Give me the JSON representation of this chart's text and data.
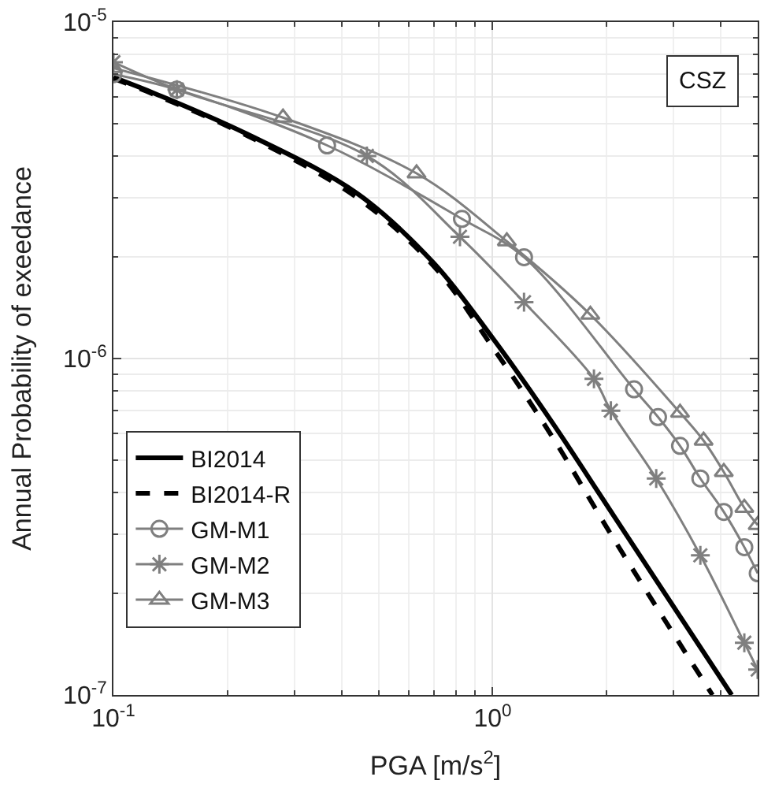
{
  "chart_data": {
    "type": "line",
    "xlabel": "PGA [m/s$^{2}$]",
    "ylabel": "Annual Probability of exeedance",
    "annotations": [
      "CSZ"
    ],
    "log": "xy",
    "grid": true,
    "legend": "bottom left",
    "xlim": [
      0.1,
      5.0
    ],
    "xticks": [
      {
        "value": 0.1,
        "label": "10$^{-1}$"
      },
      {
        "value": 1,
        "label": "10$^{0}$"
      }
    ],
    "ylim": [
      1e-07,
      1e-05
    ],
    "yticks": [
      {
        "value": 1e-07,
        "label": "10$^{-7}$"
      },
      {
        "value": 1e-06,
        "label": "10$^{-6}$"
      },
      {
        "value": 1e-05,
        "label": "10$^{-5}$"
      }
    ],
    "series": [
      {
        "name": "BI2014",
        "color": "#000000",
        "line_style": "solid",
        "marker": "none",
        "x": [
          0.1,
          0.13,
          0.225,
          0.44,
          0.7,
          1.0,
          1.43,
          2.09,
          4.27
        ],
        "values": [
          6.85e-06,
          6.1e-06,
          4.65e-06,
          3.09e-06,
          1.92e-06,
          1.15e-06,
          6.5e-07,
          3.4e-07,
          1e-07
        ]
      },
      {
        "name": "BI2014-R",
        "color": "#000000",
        "line_style": "dashed",
        "marker": "none",
        "x": [
          0.1,
          0.13,
          0.225,
          0.44,
          0.7,
          1.0,
          1.43,
          2.09,
          3.8
        ],
        "values": [
          6.8e-06,
          6.05e-06,
          4.6e-06,
          3e-06,
          1.88e-06,
          1.08e-06,
          5.9e-07,
          2.9e-07,
          1e-07
        ]
      },
      {
        "name": "GM-M1",
        "color": "#7f7f7f",
        "line_style": "solid",
        "marker": "circle",
        "x": [
          0.1,
          0.147,
          0.366,
          0.83,
          1.21,
          2.36,
          2.73,
          3.12,
          3.53,
          4.07,
          4.61,
          5.0
        ],
        "values": [
          7e-06,
          6.3e-06,
          4.3e-06,
          2.6e-06,
          2e-06,
          8.1e-07,
          6.7e-07,
          5.5e-07,
          4.4e-07,
          3.5e-07,
          2.75e-07,
          2.3e-07
        ]
      },
      {
        "name": "GM-M2",
        "color": "#7f7f7f",
        "line_style": "solid",
        "marker": "cross",
        "x": [
          0.1,
          0.147,
          0.466,
          0.82,
          1.21,
          1.85,
          2.05,
          2.7,
          3.53,
          4.61,
          5.0
        ],
        "values": [
          7.6e-06,
          6.3e-06,
          4e-06,
          2.3e-06,
          1.47e-06,
          8.7e-07,
          7e-07,
          4.4e-07,
          2.6e-07,
          1.43e-07,
          1.19e-07
        ]
      },
      {
        "name": "GM-M3",
        "color": "#7f7f7f",
        "line_style": "solid",
        "marker": "triangle",
        "x": [
          0.1,
          0.28,
          0.63,
          1.09,
          1.81,
          3.12,
          3.6,
          4.07,
          4.61,
          5.0
        ],
        "values": [
          7.3e-06,
          5.2e-06,
          3.55e-06,
          2.23e-06,
          1.35e-06,
          6.9e-07,
          5.7e-07,
          4.6e-07,
          3.6e-07,
          3.2e-07
        ]
      }
    ]
  }
}
